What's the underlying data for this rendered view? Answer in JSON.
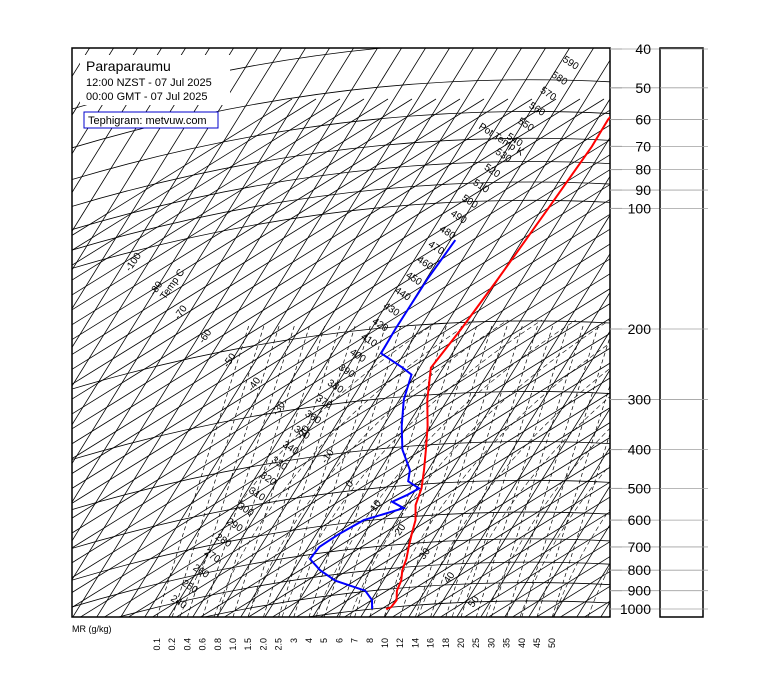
{
  "station": {
    "name": "Paraparaumu",
    "local_time": "12:00 NZST - 07 Jul 2025",
    "gmt_time": "00:00 GMT - 07 Jul 2025",
    "credit": "Tephigram: metvuw.com"
  },
  "labels": {
    "mr_axis": "MR (g/kg)",
    "temp_axis": "Temp C",
    "theta_axis": "Pot Temp K"
  },
  "colors": {
    "temperature": "#ff0000",
    "dewpoint": "#0000ff",
    "grid": "#000000",
    "pressure_gridline": "#a0a0a0",
    "credit_box": "#0000cc"
  },
  "chart_data": {
    "type": "line",
    "diagram": "tephigram",
    "pressure_levels_hpa": [
      40,
      50,
      60,
      70,
      80,
      90,
      100,
      200,
      300,
      400,
      500,
      600,
      700,
      800,
      900,
      1000
    ],
    "pressure_axis_labels": [
      "40",
      "50",
      "60",
      "70",
      "80",
      "90",
      "100",
      "200",
      "300",
      "400",
      "500",
      "600",
      "700",
      "800",
      "900",
      "1000"
    ],
    "pressure_range_hpa": [
      40,
      1000
    ],
    "mixing_ratio_labels": [
      "0.1",
      "0.2",
      "0.4",
      "0.6",
      "0.8",
      "1.0",
      "1.5",
      "2.0",
      "2.5",
      "3",
      "4",
      "5",
      "6",
      "7",
      "8",
      "10",
      "12",
      "14",
      "16",
      "18",
      "20",
      "25",
      "30",
      "35",
      "40",
      "45",
      "50"
    ],
    "isotherm_labels": [
      "-100",
      "-80",
      "-70",
      "-60",
      "-50",
      "-40",
      "-30",
      "-20",
      "-10",
      "0",
      "10",
      "20",
      "30",
      "40",
      "50"
    ],
    "potential_temperature_labels": [
      "240",
      "250",
      "260",
      "270",
      "280",
      "290",
      "300",
      "310",
      "320",
      "330",
      "340",
      "350",
      "360",
      "370",
      "380",
      "390",
      "400",
      "410",
      "420",
      "430",
      "440",
      "450",
      "460",
      "470",
      "480",
      "490",
      "500",
      "510",
      "520",
      "530",
      "540",
      "550",
      "560",
      "570",
      "580",
      "590"
    ],
    "series": [
      {
        "name": "Temperature",
        "points": [
          {
            "p": 1000,
            "t": 9
          },
          {
            "p": 990,
            "t": 10.5
          },
          {
            "p": 950,
            "t": 10.5
          },
          {
            "p": 900,
            "t": 7.5
          },
          {
            "p": 850,
            "t": 6
          },
          {
            "p": 800,
            "t": 3
          },
          {
            "p": 750,
            "t": 1
          },
          {
            "p": 700,
            "t": -2
          },
          {
            "p": 650,
            "t": -5
          },
          {
            "p": 600,
            "t": -8
          },
          {
            "p": 550,
            "t": -13
          },
          {
            "p": 500,
            "t": -16
          },
          {
            "p": 450,
            "t": -21
          },
          {
            "p": 400,
            "t": -27
          },
          {
            "p": 350,
            "t": -34
          },
          {
            "p": 300,
            "t": -43
          },
          {
            "p": 250,
            "t": -52
          },
          {
            "p": 200,
            "t": -52
          },
          {
            "p": 150,
            "t": -53
          },
          {
            "p": 100,
            "t": -55
          },
          {
            "p": 70,
            "t": -57
          },
          {
            "p": 60,
            "t": -59
          },
          {
            "p": 50,
            "t": -58
          },
          {
            "p": 45,
            "t": -52
          },
          {
            "p": 40,
            "t": -49
          }
        ]
      },
      {
        "name": "Dew point",
        "points": [
          {
            "p": 1000,
            "t": 3
          },
          {
            "p": 950,
            "t": 0
          },
          {
            "p": 900,
            "t": -6
          },
          {
            "p": 850,
            "t": -22
          },
          {
            "p": 800,
            "t": -32
          },
          {
            "p": 750,
            "t": -40
          },
          {
            "p": 700,
            "t": -40
          },
          {
            "p": 650,
            "t": -36
          },
          {
            "p": 600,
            "t": -30
          },
          {
            "p": 560,
            "t": -17
          },
          {
            "p": 540,
            "t": -24
          },
          {
            "p": 520,
            "t": -20
          },
          {
            "p": 500,
            "t": -17
          },
          {
            "p": 480,
            "t": -24
          },
          {
            "p": 450,
            "t": -27
          },
          {
            "p": 400,
            "t": -37
          },
          {
            "p": 350,
            "t": -45
          },
          {
            "p": 300,
            "t": -53
          },
          {
            "p": 260,
            "t": -58
          },
          {
            "p": 250,
            "t": -64
          },
          {
            "p": 230,
            "t": -78
          },
          {
            "p": 200,
            "t": -80
          },
          {
            "p": 150,
            "t": -83
          },
          {
            "p": 120,
            "t": -84
          }
        ]
      }
    ]
  }
}
